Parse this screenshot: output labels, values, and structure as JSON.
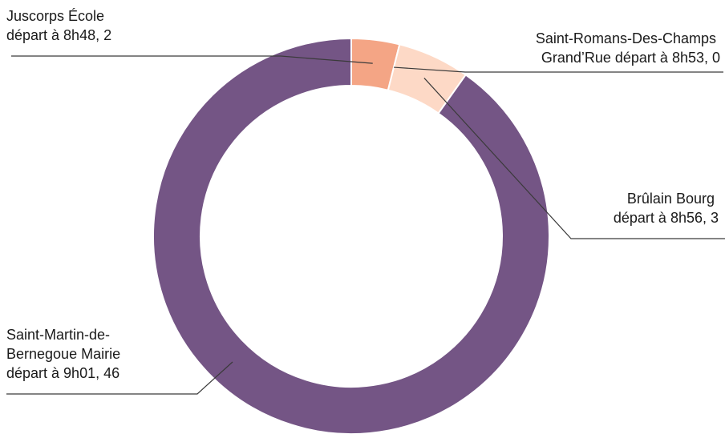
{
  "chart_data": {
    "type": "pie",
    "variant": "donut",
    "title": "",
    "labels": [
      [
        "Juscorps École",
        "départ à 8h48, 2"
      ],
      [
        "Saint-Romans-Des-Champs",
        "Grand’Rue départ à 8h53, 0"
      ],
      [
        "Brûlain Bourg",
        "départ à 8h56, 3"
      ],
      [
        "Saint-Martin-de-",
        "Bernegoue Mairie",
        "départ à 9h01, 46"
      ]
    ],
    "categories": [
      "Juscorps École départ à 8h48",
      "Saint-Romans-Des-Champs Grand’Rue départ à 8h53",
      "Brûlain Bourg départ à 8h56",
      "Saint-Martin-de-Bernegoue Mairie départ à 9h01"
    ],
    "values": [
      2,
      0,
      3,
      46
    ],
    "colors": [
      "#f4a585",
      "#fdd9c6",
      "#fdd9c6",
      "#745585"
    ],
    "legend": "none"
  }
}
